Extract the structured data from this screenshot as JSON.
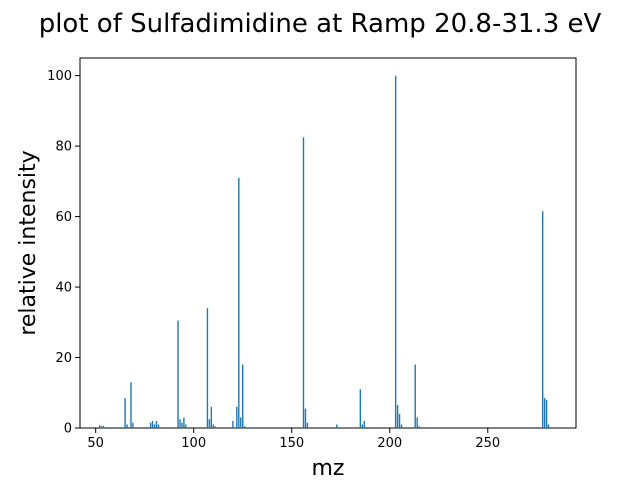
{
  "chart_data": {
    "type": "bar",
    "title": "plot of Sulfadimidine at Ramp 20.8-31.3 eV",
    "xlabel": "mz",
    "ylabel": "relative intensity",
    "xlim": [
      42,
      295
    ],
    "ylim": [
      0,
      105
    ],
    "x_ticks": [
      50,
      100,
      150,
      200,
      250
    ],
    "y_ticks": [
      0,
      20,
      40,
      60,
      80,
      100
    ],
    "grid": false,
    "bar_color": "#1f77b4",
    "x": [
      52,
      53,
      54,
      65,
      66,
      68,
      69,
      78,
      79,
      80,
      81,
      82,
      92,
      93,
      94,
      95,
      96,
      107,
      108,
      109,
      110,
      111,
      120,
      122,
      123,
      124,
      125,
      126,
      156,
      157,
      158,
      173,
      185,
      186,
      187,
      203,
      204,
      205,
      206,
      213,
      214,
      215,
      278,
      279,
      280,
      281
    ],
    "values": [
      0.8,
      0.5,
      0.6,
      8.5,
      1.0,
      13.0,
      1.5,
      1.5,
      2.0,
      1.0,
      2.0,
      1.0,
      30.5,
      2.5,
      1.5,
      3.0,
      1.0,
      34.0,
      2.5,
      6.0,
      1.0,
      0.5,
      2.0,
      6.0,
      71.0,
      3.0,
      18.0,
      0.5,
      82.5,
      5.5,
      1.5,
      1.0,
      11.0,
      1.0,
      2.0,
      100.0,
      6.5,
      4.0,
      1.0,
      18.0,
      3.0,
      0.5,
      61.5,
      8.5,
      8.0,
      1.0
    ]
  }
}
